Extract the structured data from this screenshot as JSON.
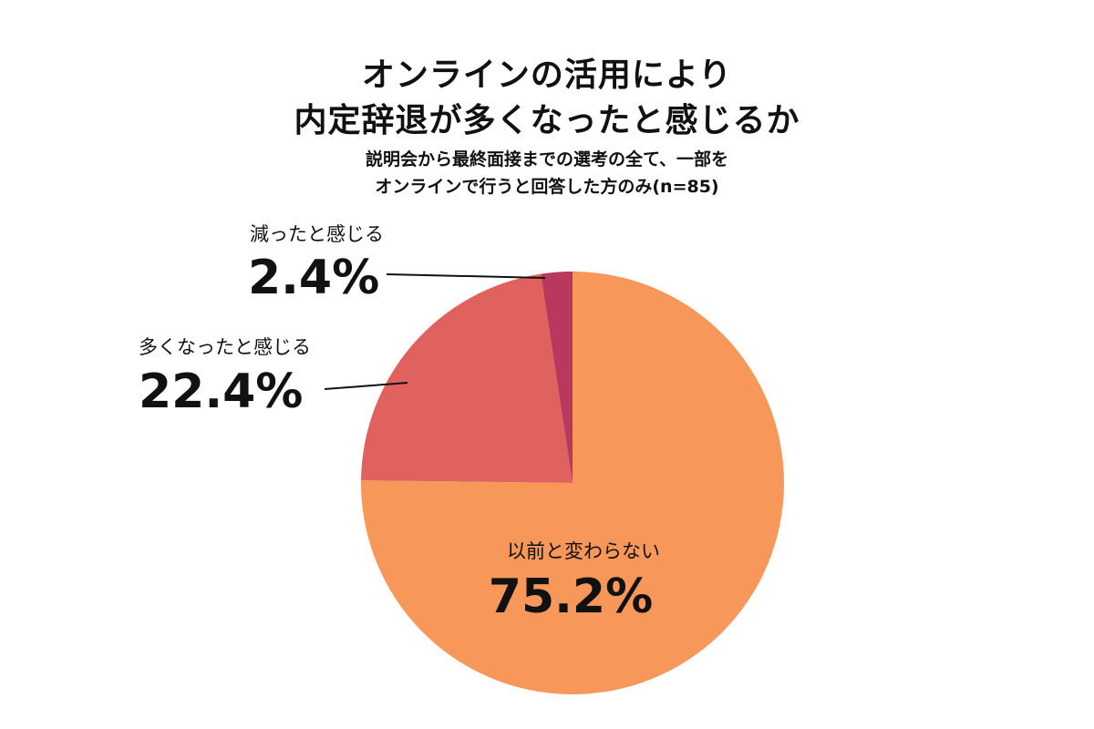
{
  "chart_data": {
    "type": "pie",
    "title": [
      "オンラインの活用により",
      "内定辞退が多くなったと感じるか"
    ],
    "subtitle": [
      "説明会から最終面接までの選考の全て、一部を",
      "オンラインで行うと回答した方のみ(n=85)"
    ],
    "start_angle_deg": 0,
    "direction": "clockwise",
    "slices": [
      {
        "label": "以前と変わらない",
        "value": 75.2,
        "display": "75.2%",
        "color": "#F7975A"
      },
      {
        "label": "多くなったと感じる",
        "value": 22.4,
        "display": "22.4%",
        "color": "#E0625E"
      },
      {
        "label": "減ったと感じる",
        "value": 2.4,
        "display": "2.4%",
        "color": "#B83860"
      }
    ],
    "leader_line_color": "#111111"
  }
}
